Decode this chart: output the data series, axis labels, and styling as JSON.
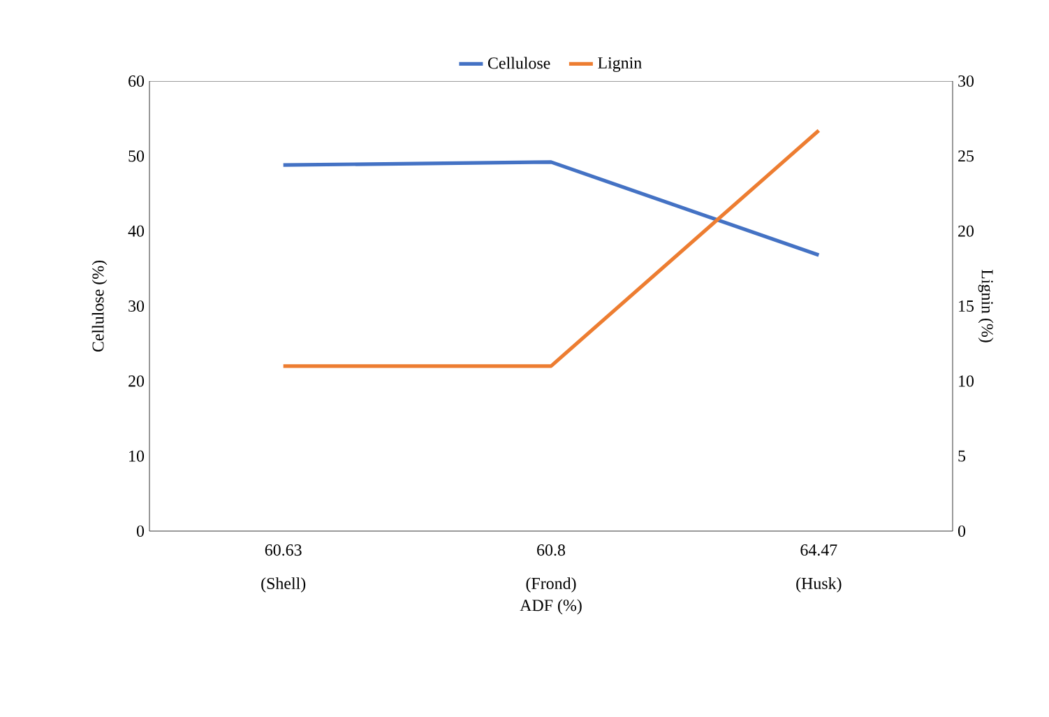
{
  "chart_data": {
    "type": "line",
    "categories": [
      "60.63 (Shell)",
      "60.8 (Frond)",
      "64.47 (Husk)"
    ],
    "xlabel": "ADF (%)",
    "ylabel": "Cellulose (%)",
    "y2label": "Lignin (%)",
    "series": [
      {
        "name": "Cellulose",
        "color": "#4472c4",
        "values": [
          48.8,
          49.2,
          36.8
        ]
      },
      {
        "name": "Lignin",
        "color": "#ed7d31",
        "axis": "y2",
        "values": [
          11.0,
          11.0,
          26.7
        ]
      }
    ],
    "ylim": [
      0,
      60
    ],
    "yticks": [
      0,
      10,
      20,
      30,
      40,
      50,
      60
    ],
    "y2lim": [
      0,
      30
    ],
    "y2ticks": [
      0,
      5,
      10,
      15,
      20,
      25,
      30
    ],
    "legend": "top",
    "grid": false,
    "marker": "none",
    "line_style": "solid"
  }
}
